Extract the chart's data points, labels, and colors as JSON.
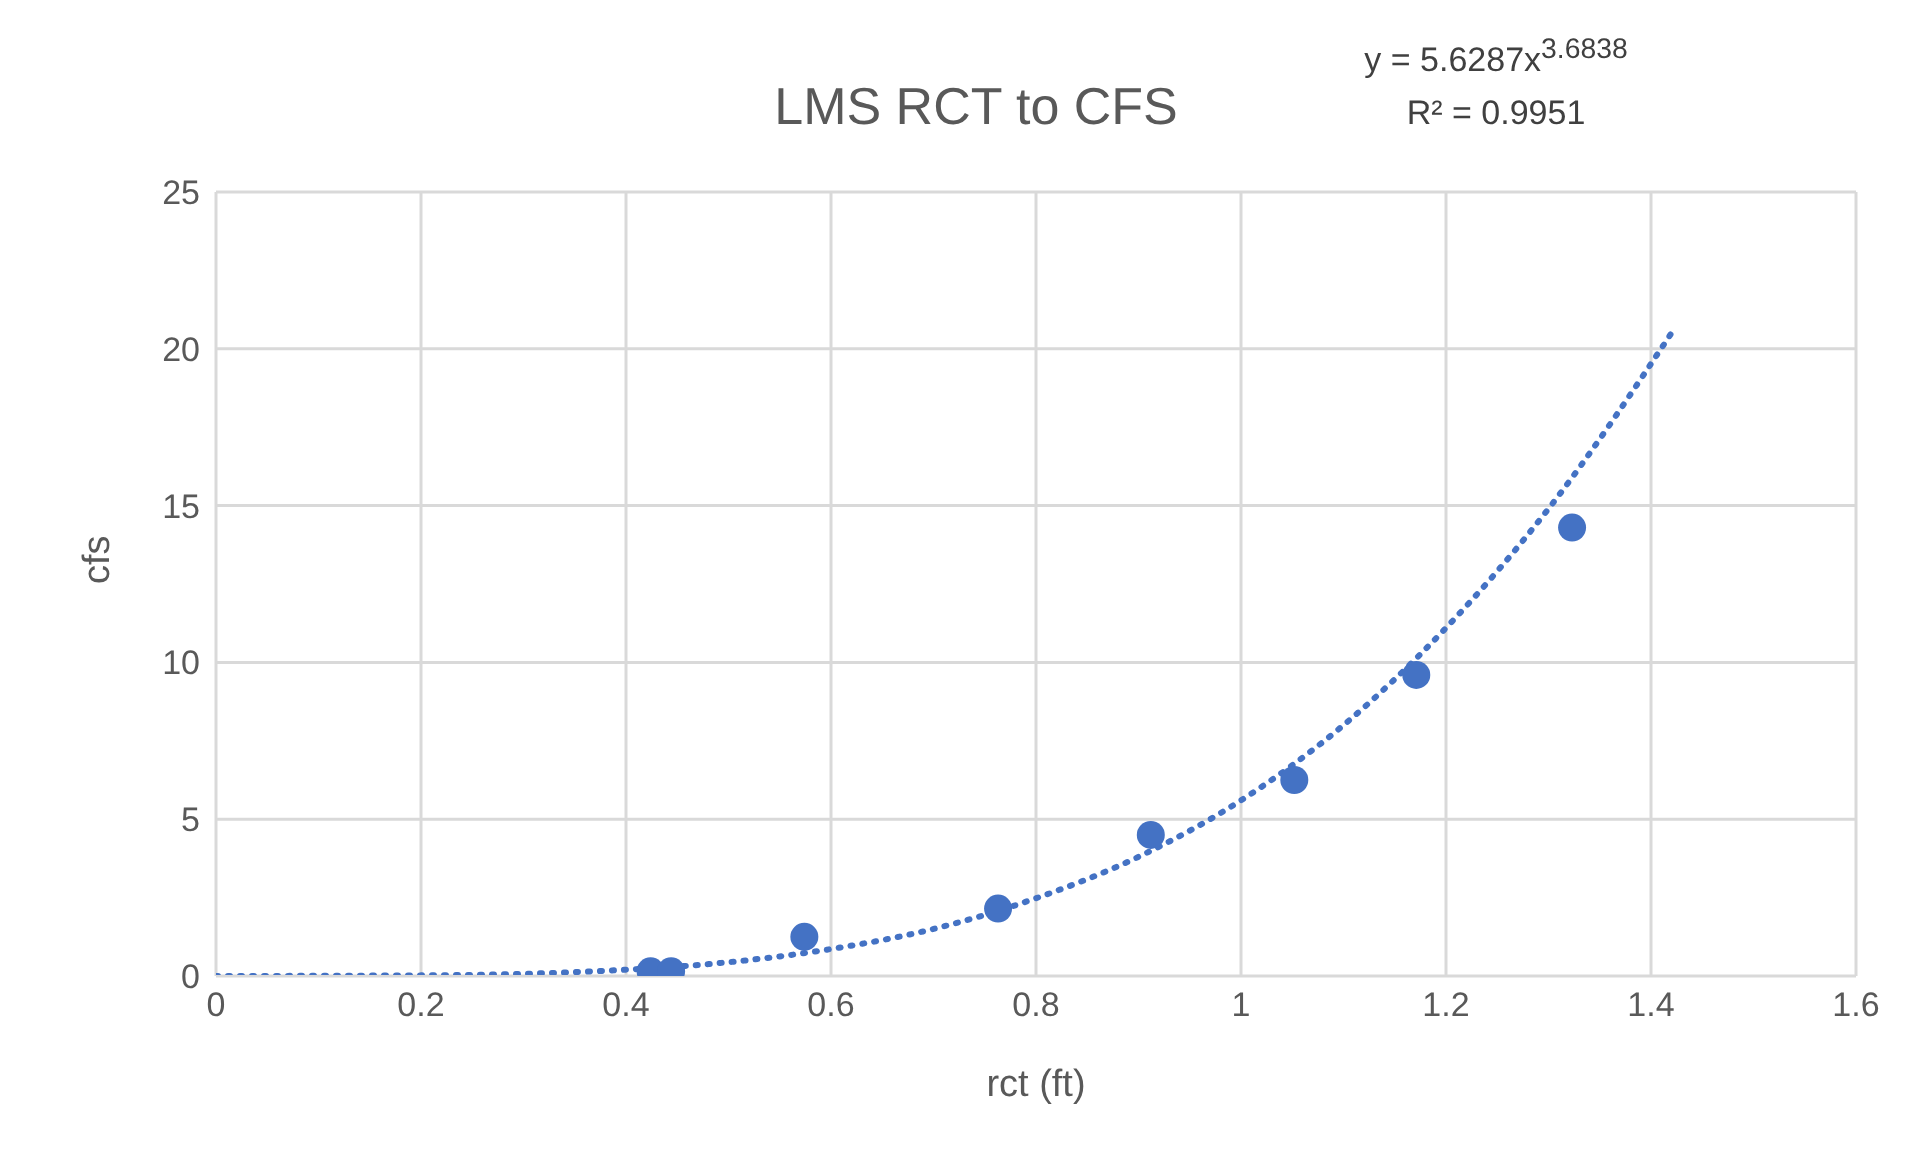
{
  "chart_data": {
    "type": "scatter",
    "title": "LMS RCT to CFS",
    "xlabel": "rct (ft)",
    "ylabel": "cfs",
    "annotations": [
      "y = 5.6287x$^{3.6838}$",
      "R² = 0.9951"
    ],
    "xlim": [
      0,
      1.6
    ],
    "xticks": [
      0,
      0.2,
      0.4,
      0.6,
      0.8,
      1,
      1.2,
      1.4,
      1.6
    ],
    "ylim": [
      0,
      25
    ],
    "yticks": [
      0,
      5,
      10,
      15,
      20,
      25
    ],
    "grid": true,
    "series": [
      {
        "color": "#4472c4",
        "marker": "circle",
        "x": [
          0.424,
          0.444,
          0.574,
          0.763,
          0.912,
          1.052,
          1.171,
          1.323
        ],
        "values": [
          0.15,
          0.15,
          1.25,
          2.15,
          4.5,
          6.25,
          9.6,
          14.3
        ]
      },
      {
        "type": "line",
        "color": "#4472c4",
        "marker": "none",
        "line_style": "dotted",
        "x": [
          0,
          0.2,
          0.4,
          0.5,
          0.6,
          0.7,
          0.8,
          0.9,
          1,
          1.1,
          1.2,
          1.3,
          1.424
        ],
        "values": [
          0,
          0.02,
          0.2,
          0.44,
          0.86,
          1.5,
          2.48,
          3.8,
          5.6,
          8.0,
          11.1,
          14.9,
          20.7
        ]
      }
    ]
  }
}
